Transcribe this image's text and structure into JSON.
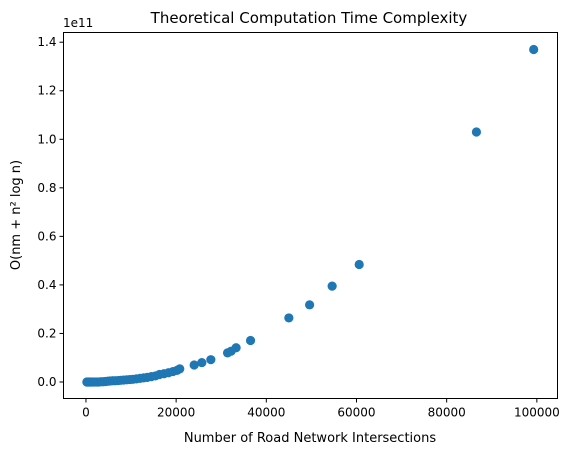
{
  "chart_data": {
    "type": "scatter",
    "title": "Theoretical Computation Time Complexity",
    "xlabel": "Number of Road Network Intersections",
    "ylabel": "O(nm + n² log n)",
    "y_offset_label": "1e11",
    "xlim": [
      -4980,
      104580
    ],
    "ylim": [
      -0.068,
      1.44
    ],
    "y_unit_multiplier": 100000000000.0,
    "x_ticks": [
      0,
      20000,
      40000,
      60000,
      80000,
      100000
    ],
    "x_tick_labels": [
      "0",
      "20000",
      "40000",
      "60000",
      "80000",
      "100000"
    ],
    "y_ticks": [
      0.0,
      0.2,
      0.4,
      0.6,
      0.8,
      1.0,
      1.2,
      1.4
    ],
    "y_tick_labels": [
      "0.0",
      "0.2",
      "0.4",
      "0.6",
      "0.8",
      "1.0",
      "1.2",
      "1.4"
    ],
    "grid": false,
    "marker_color": "#1f77b4",
    "x": [
      200,
      400,
      600,
      800,
      1000,
      1300,
      1600,
      2000,
      2400,
      2800,
      3300,
      3800,
      4300,
      4800,
      5300,
      5900,
      6500,
      7100,
      7700,
      8300,
      9000,
      9700,
      10400,
      11200,
      12000,
      12800,
      13600,
      14500,
      15400,
      16300,
      17300,
      18300,
      19300,
      20200,
      20800,
      24000,
      25700,
      27700,
      31400,
      32200,
      33300,
      36500,
      45000,
      49600,
      54600,
      60600,
      86600,
      99300
    ],
    "y": [
      0.0,
      0.0,
      0.0,
      0.0,
      0.0,
      0.0,
      0.0,
      0.0,
      0.0,
      0.0,
      0.001,
      0.001,
      0.002,
      0.003,
      0.004,
      0.005,
      0.005,
      0.006,
      0.007,
      0.008,
      0.009,
      0.01,
      0.011,
      0.013,
      0.015,
      0.017,
      0.019,
      0.022,
      0.025,
      0.031,
      0.034,
      0.038,
      0.043,
      0.048,
      0.054,
      0.07,
      0.08,
      0.092,
      0.12,
      0.127,
      0.141,
      0.171,
      0.264,
      0.318,
      0.395,
      0.484,
      1.03,
      1.37
    ]
  }
}
